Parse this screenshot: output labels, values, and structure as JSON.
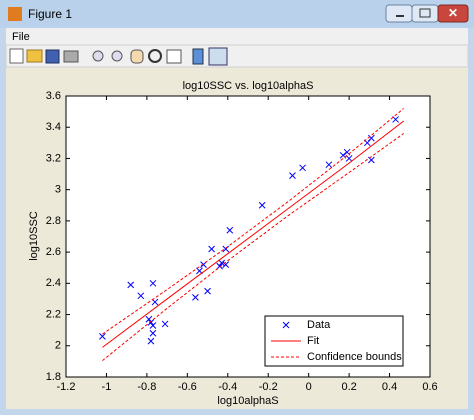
{
  "window": {
    "title": "Figure 1",
    "menu": [
      "File"
    ]
  },
  "chart_data": {
    "type": "scatter",
    "title": "log10SSC vs. log10alphaS",
    "x_label": "log10alphaS",
    "y_label": "log10SSC",
    "xlim": [
      -1.2,
      0.6
    ],
    "xticks": [
      -1.2,
      -1,
      -0.8,
      -0.6,
      -0.4,
      -0.2,
      0,
      0.2,
      0.4,
      0.6
    ],
    "ylim": [
      1.8,
      3.6
    ],
    "yticks": [
      1.8,
      2,
      2.2,
      2.4,
      2.6,
      2.8,
      3,
      3.2,
      3.4,
      3.6
    ],
    "legend": "lower right",
    "series": [
      {
        "name": "Data",
        "color": "#0000ff",
        "marker": "x",
        "x": [
          -1.02,
          -0.88,
          -0.83,
          -0.77,
          -0.76,
          -0.79,
          -0.78,
          -0.77,
          -0.77,
          -0.78,
          -0.71,
          -0.56,
          -0.54,
          -0.52,
          -0.5,
          -0.48,
          -0.44,
          -0.43,
          -0.41,
          -0.39,
          -0.41,
          -0.23,
          -0.08,
          -0.03,
          0.1,
          0.17,
          0.19,
          0.2,
          0.29,
          0.31,
          0.31,
          0.43
        ],
        "values": [
          2.06,
          2.39,
          2.32,
          2.4,
          2.28,
          2.17,
          2.15,
          2.13,
          2.08,
          2.03,
          2.14,
          2.31,
          2.48,
          2.52,
          2.35,
          2.62,
          2.51,
          2.53,
          2.52,
          2.74,
          2.62,
          2.9,
          3.09,
          3.14,
          3.16,
          3.22,
          3.24,
          3.2,
          3.3,
          3.19,
          3.33,
          3.45
        ]
      },
      {
        "name": "Fit",
        "color": "#ff0000",
        "line": "solid",
        "x": [
          -1.02,
          -0.7,
          -0.4,
          -0.1,
          0.2,
          0.47
        ],
        "values": [
          1.99,
          2.3,
          2.59,
          2.88,
          3.17,
          3.44
        ]
      },
      {
        "name": "Confidence bounds",
        "color": "#ff0000",
        "line": "dashed",
        "x": [
          -1.02,
          -0.7,
          -0.4,
          -0.1,
          0.2,
          0.47
        ],
        "lower": [
          1.905,
          2.24,
          2.545,
          2.835,
          3.11,
          3.36
        ],
        "upper": [
          2.075,
          2.36,
          2.635,
          2.925,
          3.23,
          3.52
        ]
      }
    ]
  }
}
